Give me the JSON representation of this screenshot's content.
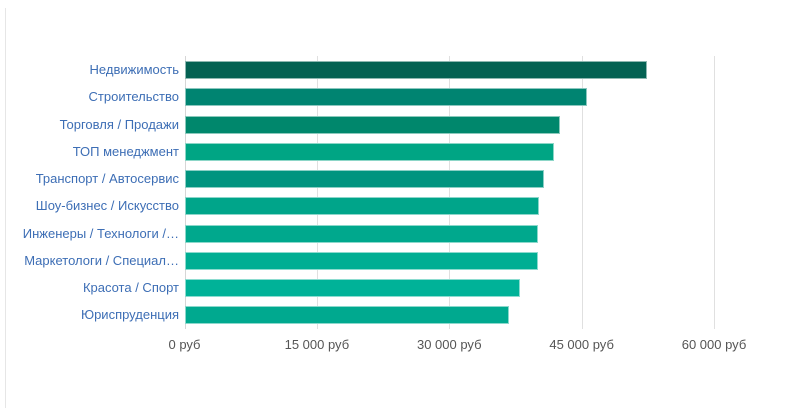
{
  "page": {
    "background_color": "#ffffff",
    "left_border_color": "#e6e6e6"
  },
  "chart_data": {
    "type": "bar",
    "orientation": "horizontal",
    "title": "",
    "xlabel": "",
    "ylabel": "",
    "unit": "руб",
    "xlim": [
      0,
      60000
    ],
    "grid": true,
    "legend": false,
    "categories": [
      "Недвижимость",
      "Строительство",
      "Торговля / Продажи",
      "ТОП менеджмент",
      "Транспорт / Автосервис",
      "Шоу-бизнес / Искусство",
      "Инженеры / Технологи /…",
      "Маркетологи / Специал…",
      "Красота / Спорт",
      "Юриспруденция"
    ],
    "values": [
      52400,
      45600,
      42500,
      41900,
      40700,
      40200,
      40000,
      40000,
      38000,
      36800
    ],
    "bar_colors": [
      "#036152",
      "#008471",
      "#00876c",
      "#00a584",
      "#00947f",
      "#00a58a",
      "#00a88d",
      "#00ae93",
      "#00b298",
      "#00a98f"
    ],
    "x_ticks": [
      {
        "value": 0,
        "label": "0 руб"
      },
      {
        "value": 15000,
        "label": "15 000 руб"
      },
      {
        "value": 30000,
        "label": "30 000 руб"
      },
      {
        "value": 45000,
        "label": "45 000 руб"
      },
      {
        "value": 60000,
        "label": "60 000 руб"
      }
    ],
    "category_label_color": "#3d6eb5",
    "tick_label_color": "#555555"
  }
}
